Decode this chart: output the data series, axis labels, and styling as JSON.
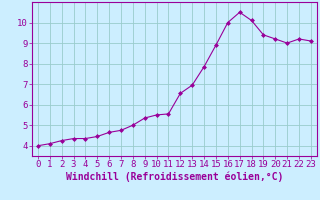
{
  "x": [
    0,
    1,
    2,
    3,
    4,
    5,
    6,
    7,
    8,
    9,
    10,
    11,
    12,
    13,
    14,
    15,
    16,
    17,
    18,
    19,
    20,
    21,
    22,
    23
  ],
  "y": [
    4.0,
    4.1,
    4.25,
    4.35,
    4.35,
    4.45,
    4.65,
    4.75,
    5.0,
    5.35,
    5.5,
    5.55,
    6.55,
    6.95,
    7.85,
    8.9,
    10.0,
    10.5,
    10.1,
    9.4,
    9.2,
    9.0,
    9.2,
    9.1
  ],
  "line_color": "#990099",
  "marker": "D",
  "marker_size": 2,
  "bg_color": "#cceeff",
  "grid_color": "#99cccc",
  "axis_color": "#990099",
  "xlabel": "Windchill (Refroidissement éolien,°C)",
  "xlabel_fontsize": 7,
  "tick_fontsize": 6.5,
  "ylim": [
    3.5,
    11.0
  ],
  "xlim": [
    -0.5,
    23.5
  ],
  "yticks": [
    4,
    5,
    6,
    7,
    8,
    9,
    10
  ],
  "xticks": [
    0,
    1,
    2,
    3,
    4,
    5,
    6,
    7,
    8,
    9,
    10,
    11,
    12,
    13,
    14,
    15,
    16,
    17,
    18,
    19,
    20,
    21,
    22,
    23
  ]
}
